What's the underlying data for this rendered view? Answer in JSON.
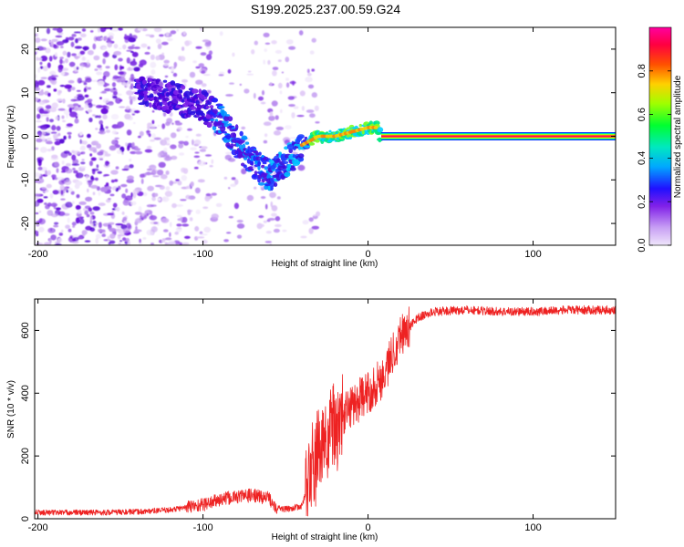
{
  "figure_title": "S199.2025.237.00.59.G24",
  "chart_data": [
    {
      "type": "heatmap",
      "name": "spectrogram",
      "title": "S199.2025.237.00.59.G24",
      "xlabel": "Height of straight line (km)",
      "ylabel": "Frequency (Hz)",
      "xlim": [
        -202,
        150
      ],
      "ylim": [
        -25,
        25
      ],
      "xticks": [
        -200,
        -100,
        0,
        100
      ],
      "yticks": [
        -20,
        -10,
        0,
        10,
        20
      ],
      "colorbar": {
        "label": "Normalized spectral amplitude",
        "range": [
          0,
          1
        ],
        "ticks": [
          0.0,
          0.2,
          0.4,
          0.6,
          0.8
        ],
        "tick_labels": [
          "0.0",
          "0.2",
          "0.4",
          "0.6",
          "0.8"
        ],
        "colormap": [
          "#e8dcf8",
          "#b080f0",
          "#7000e0",
          "#2020ff",
          "#00c8ff",
          "#00ff60",
          "#c8ff00",
          "#ffb000",
          "#ff2000",
          "#ff0090"
        ]
      },
      "ridge": [
        {
          "x": -140,
          "y": 10
        },
        {
          "x": -120,
          "y": 9
        },
        {
          "x": -100,
          "y": 7
        },
        {
          "x": -90,
          "y": 4
        },
        {
          "x": -80,
          "y": -1
        },
        {
          "x": -70,
          "y": -6
        },
        {
          "x": -60,
          "y": -9
        },
        {
          "x": -50,
          "y": -6
        },
        {
          "x": -40,
          "y": -2
        },
        {
          "x": -30,
          "y": 0
        },
        {
          "x": -20,
          "y": 0
        },
        {
          "x": -10,
          "y": 1
        },
        {
          "x": 0,
          "y": 2
        },
        {
          "x": 5,
          "y": 2
        },
        {
          "x": 8,
          "y": 0
        }
      ],
      "carrier": {
        "x_from": 8,
        "x_to": 150,
        "y": 0
      }
    },
    {
      "type": "line",
      "name": "snr",
      "xlabel": "Height of straight line (km)",
      "ylabel": "SNR (10 * v/v)",
      "xlim": [
        -202,
        150
      ],
      "ylim": [
        0,
        700
      ],
      "xticks": [
        -200,
        -100,
        0,
        100
      ],
      "yticks": [
        0,
        200,
        400,
        600
      ],
      "color": "#ee2222",
      "series": [
        {
          "name": "SNR",
          "x": [
            -202,
            -180,
            -160,
            -140,
            -120,
            -100,
            -90,
            -80,
            -70,
            -60,
            -55,
            -50,
            -45,
            -40,
            -38,
            -36,
            -34,
            -32,
            -30,
            -28,
            -26,
            -24,
            -22,
            -20,
            -15,
            -10,
            -5,
            0,
            5,
            10,
            15,
            20,
            25,
            30,
            40,
            60,
            80,
            100,
            120,
            150
          ],
          "y": [
            20,
            20,
            20,
            22,
            28,
            45,
            60,
            70,
            75,
            65,
            35,
            30,
            35,
            40,
            80,
            120,
            180,
            150,
            260,
            190,
            300,
            230,
            320,
            270,
            330,
            360,
            380,
            400,
            430,
            460,
            530,
            590,
            610,
            640,
            660,
            665,
            660,
            660,
            665,
            665
          ]
        }
      ]
    }
  ]
}
